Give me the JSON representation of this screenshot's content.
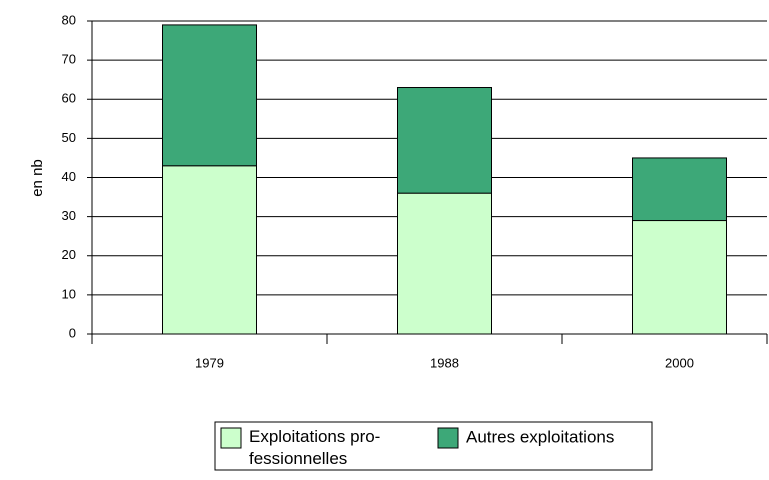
{
  "chart_data": {
    "type": "stacked_bar",
    "y_label": "en nb",
    "categories": [
      "1979",
      "1988",
      "2000"
    ],
    "series": [
      {
        "name": "Exploitations pro-\nfessionnelles",
        "color": "#ccffcc",
        "values": [
          43,
          36,
          29
        ]
      },
      {
        "name": "Autres exploitations",
        "color": "#3da878",
        "values": [
          36,
          27,
          16
        ]
      }
    ],
    "ylim": [
      0,
      80
    ],
    "yticks": [
      0,
      10,
      20,
      30,
      40,
      50,
      60,
      70,
      80
    ],
    "grid": true,
    "legend": "bottom"
  }
}
